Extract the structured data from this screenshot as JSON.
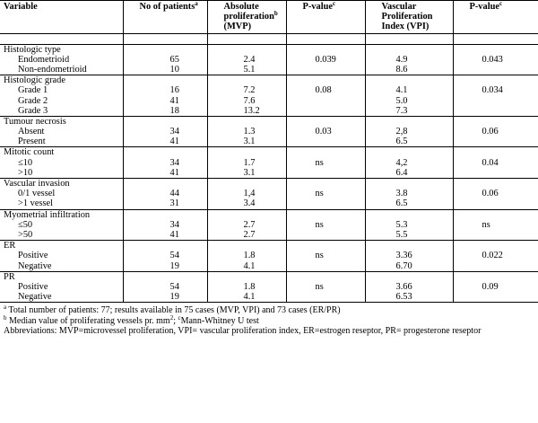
{
  "header": {
    "variable": "Variable",
    "patients": "No of patients",
    "patients_sup": "a",
    "absprolif_l1": "Absolute",
    "absprolif_l2": "proliferation",
    "absprolif_sup": "b",
    "absprolif_l3": "(MVP)",
    "pvalue": "P-value",
    "pvalue_sup": "c",
    "vpi_l1": "Vascular",
    "vpi_l2": "Proliferation",
    "vpi_l3": "Index (VPI)",
    "pvalue2": "P-value",
    "pvalue2_sup": "c"
  },
  "groups": [
    {
      "title": "Histologic type",
      "rows": [
        {
          "label": "Endometrioid",
          "n": "65",
          "mvp": "2.4",
          "p1": "0.039",
          "vpi": "4.9",
          "p2": "0.043"
        },
        {
          "label": "Non-endometrioid",
          "n": "10",
          "mvp": "5.1",
          "p1": "",
          "vpi": "8.6",
          "p2": ""
        }
      ]
    },
    {
      "title": "Histologic grade",
      "rows": [
        {
          "label": "Grade 1",
          "n": "16",
          "mvp": "7.2",
          "p1": "0.08",
          "vpi": "4.1",
          "p2": "0.034"
        },
        {
          "label": "Grade 2",
          "n": "41",
          "mvp": "7.6",
          "p1": "",
          "vpi": "5.0",
          "p2": ""
        },
        {
          "label": "Grade 3",
          "n": "18",
          "mvp": "13.2",
          "p1": "",
          "vpi": "7.3",
          "p2": ""
        }
      ]
    },
    {
      "title": "Tumour necrosis",
      "rows": [
        {
          "label": "Absent",
          "n": "34",
          "mvp": "1.3",
          "p1": "0.03",
          "vpi": "2,8",
          "p2": "0.06"
        },
        {
          "label": "Present",
          "n": "41",
          "mvp": "3.1",
          "p1": "",
          "vpi": "6.5",
          "p2": ""
        }
      ]
    },
    {
      "title": "Mitotic count",
      "rows": [
        {
          "label": "≤10",
          "n": "34",
          "mvp": "1.7",
          "p1": "ns",
          "vpi": "4,2",
          "p2": "0.04"
        },
        {
          "label": ">10",
          "n": "41",
          "mvp": "3.1",
          "p1": "",
          "vpi": "6.4",
          "p2": ""
        }
      ]
    },
    {
      "title": "Vascular invasion",
      "rows": [
        {
          "label": "0/1 vessel",
          "n": "44",
          "mvp": "1,4",
          "p1": "ns",
          "vpi": "3.8",
          "p2": "0.06"
        },
        {
          "label": ">1 vessel",
          "n": "31",
          "mvp": "3.4",
          "p1": "",
          "vpi": "6.5",
          "p2": ""
        }
      ]
    },
    {
      "title": "Myometrial infiltration",
      "rows": [
        {
          "label": "≤50",
          "n": "34",
          "mvp": "2.7",
          "p1": "ns",
          "vpi": "5.3",
          "p2": "ns"
        },
        {
          "label": ">50",
          "n": "41",
          "mvp": "2.7",
          "p1": "",
          "vpi": "5.5",
          "p2": ""
        }
      ]
    },
    {
      "title": "ER",
      "rows": [
        {
          "label": "Positive",
          "n": "54",
          "mvp": "1.8",
          "p1": "ns",
          "vpi": "3.36",
          "p2": "0.022"
        },
        {
          "label": "Negative",
          "n": "19",
          "mvp": "4.1",
          "p1": "",
          "vpi": "6.70",
          "p2": ""
        }
      ]
    },
    {
      "title": "PR",
      "rows": [
        {
          "label": "Positive",
          "n": "54",
          "mvp": "1.8",
          "p1": "ns",
          "vpi": "3.66",
          "p2": "0.09"
        },
        {
          "label": "Negative",
          "n": "19",
          "mvp": "4.1",
          "p1": "",
          "vpi": "6.53",
          "p2": ""
        }
      ]
    }
  ],
  "footnotes": {
    "a_sup": "a",
    "a_text": " Total number of patients: 77; results available in 75 cases (MVP, VPI) and 73 cases (ER/PR)",
    "b_sup": "b",
    "b_text_1": " Median value of proliferating vessels pr. mm",
    "b_sup2": "2",
    "b_text_2": ";  ",
    "c_sup": "c",
    "c_text": "Mann-Whitney U test",
    "abbreviations": "Abbreviations: MVP=microvessel proliferation, VPI= vascular proliferation index, ER=estrogen reseptor, PR= progesterone reseptor"
  }
}
